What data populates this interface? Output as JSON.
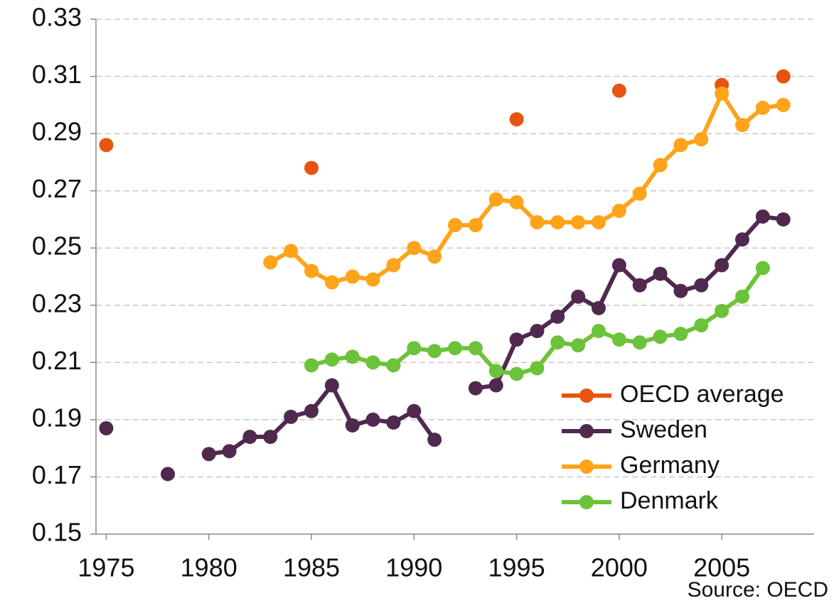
{
  "chart_data": {
    "type": "line",
    "source": "Source:  OECD",
    "x": [
      1975,
      1976,
      1977,
      1978,
      1979,
      1980,
      1981,
      1982,
      1983,
      1984,
      1985,
      1986,
      1987,
      1988,
      1989,
      1990,
      1991,
      1992,
      1993,
      1994,
      1995,
      1996,
      1997,
      1998,
      1999,
      2000,
      2001,
      2002,
      2003,
      2004,
      2005,
      2006,
      2007,
      2008
    ],
    "xlim": [
      1974.5,
      2009.5
    ],
    "xticks": [
      1975,
      1980,
      1985,
      1990,
      1995,
      2000,
      2005
    ],
    "ylim": [
      0.15,
      0.33
    ],
    "yticks": [
      0.15,
      0.17,
      0.19,
      0.21,
      0.23,
      0.25,
      0.27,
      0.29,
      0.31,
      0.33
    ],
    "grid": true,
    "legend": "lower right",
    "series": [
      {
        "name": "OECD average",
        "color": "#e8540f",
        "line": false,
        "values": [
          0.286,
          null,
          null,
          null,
          null,
          null,
          null,
          null,
          null,
          null,
          0.278,
          null,
          null,
          null,
          null,
          null,
          null,
          null,
          null,
          null,
          0.295,
          null,
          null,
          null,
          null,
          0.305,
          null,
          null,
          null,
          null,
          0.307,
          null,
          null,
          0.31
        ]
      },
      {
        "name": "Sweden",
        "color": "#50294f",
        "line": true,
        "values": [
          0.187,
          null,
          null,
          0.171,
          null,
          0.178,
          0.179,
          0.184,
          0.184,
          0.191,
          0.193,
          0.202,
          0.188,
          0.19,
          0.189,
          0.193,
          0.183,
          null,
          0.201,
          0.202,
          0.218,
          0.221,
          0.226,
          0.233,
          0.229,
          0.244,
          0.237,
          0.241,
          0.235,
          0.237,
          0.244,
          0.253,
          0.261,
          0.26
        ]
      },
      {
        "name": "Germany",
        "color": "#ffa31a",
        "line": true,
        "values": [
          null,
          null,
          null,
          null,
          null,
          null,
          null,
          null,
          0.245,
          0.249,
          0.242,
          0.238,
          0.24,
          0.239,
          0.244,
          0.25,
          0.247,
          0.258,
          0.258,
          0.267,
          0.266,
          0.259,
          0.259,
          0.259,
          0.259,
          0.263,
          0.269,
          0.279,
          0.286,
          0.288,
          0.304,
          0.293,
          0.299,
          0.3
        ]
      },
      {
        "name": "Denmark",
        "color": "#6cc23a",
        "line": true,
        "values": [
          null,
          null,
          null,
          null,
          null,
          null,
          null,
          null,
          null,
          null,
          0.209,
          0.211,
          0.212,
          0.21,
          0.209,
          0.215,
          0.214,
          0.215,
          0.215,
          0.207,
          0.206,
          0.208,
          0.217,
          0.216,
          0.221,
          0.218,
          0.217,
          0.219,
          0.22,
          0.223,
          0.228,
          0.233,
          0.243,
          null
        ]
      }
    ]
  }
}
